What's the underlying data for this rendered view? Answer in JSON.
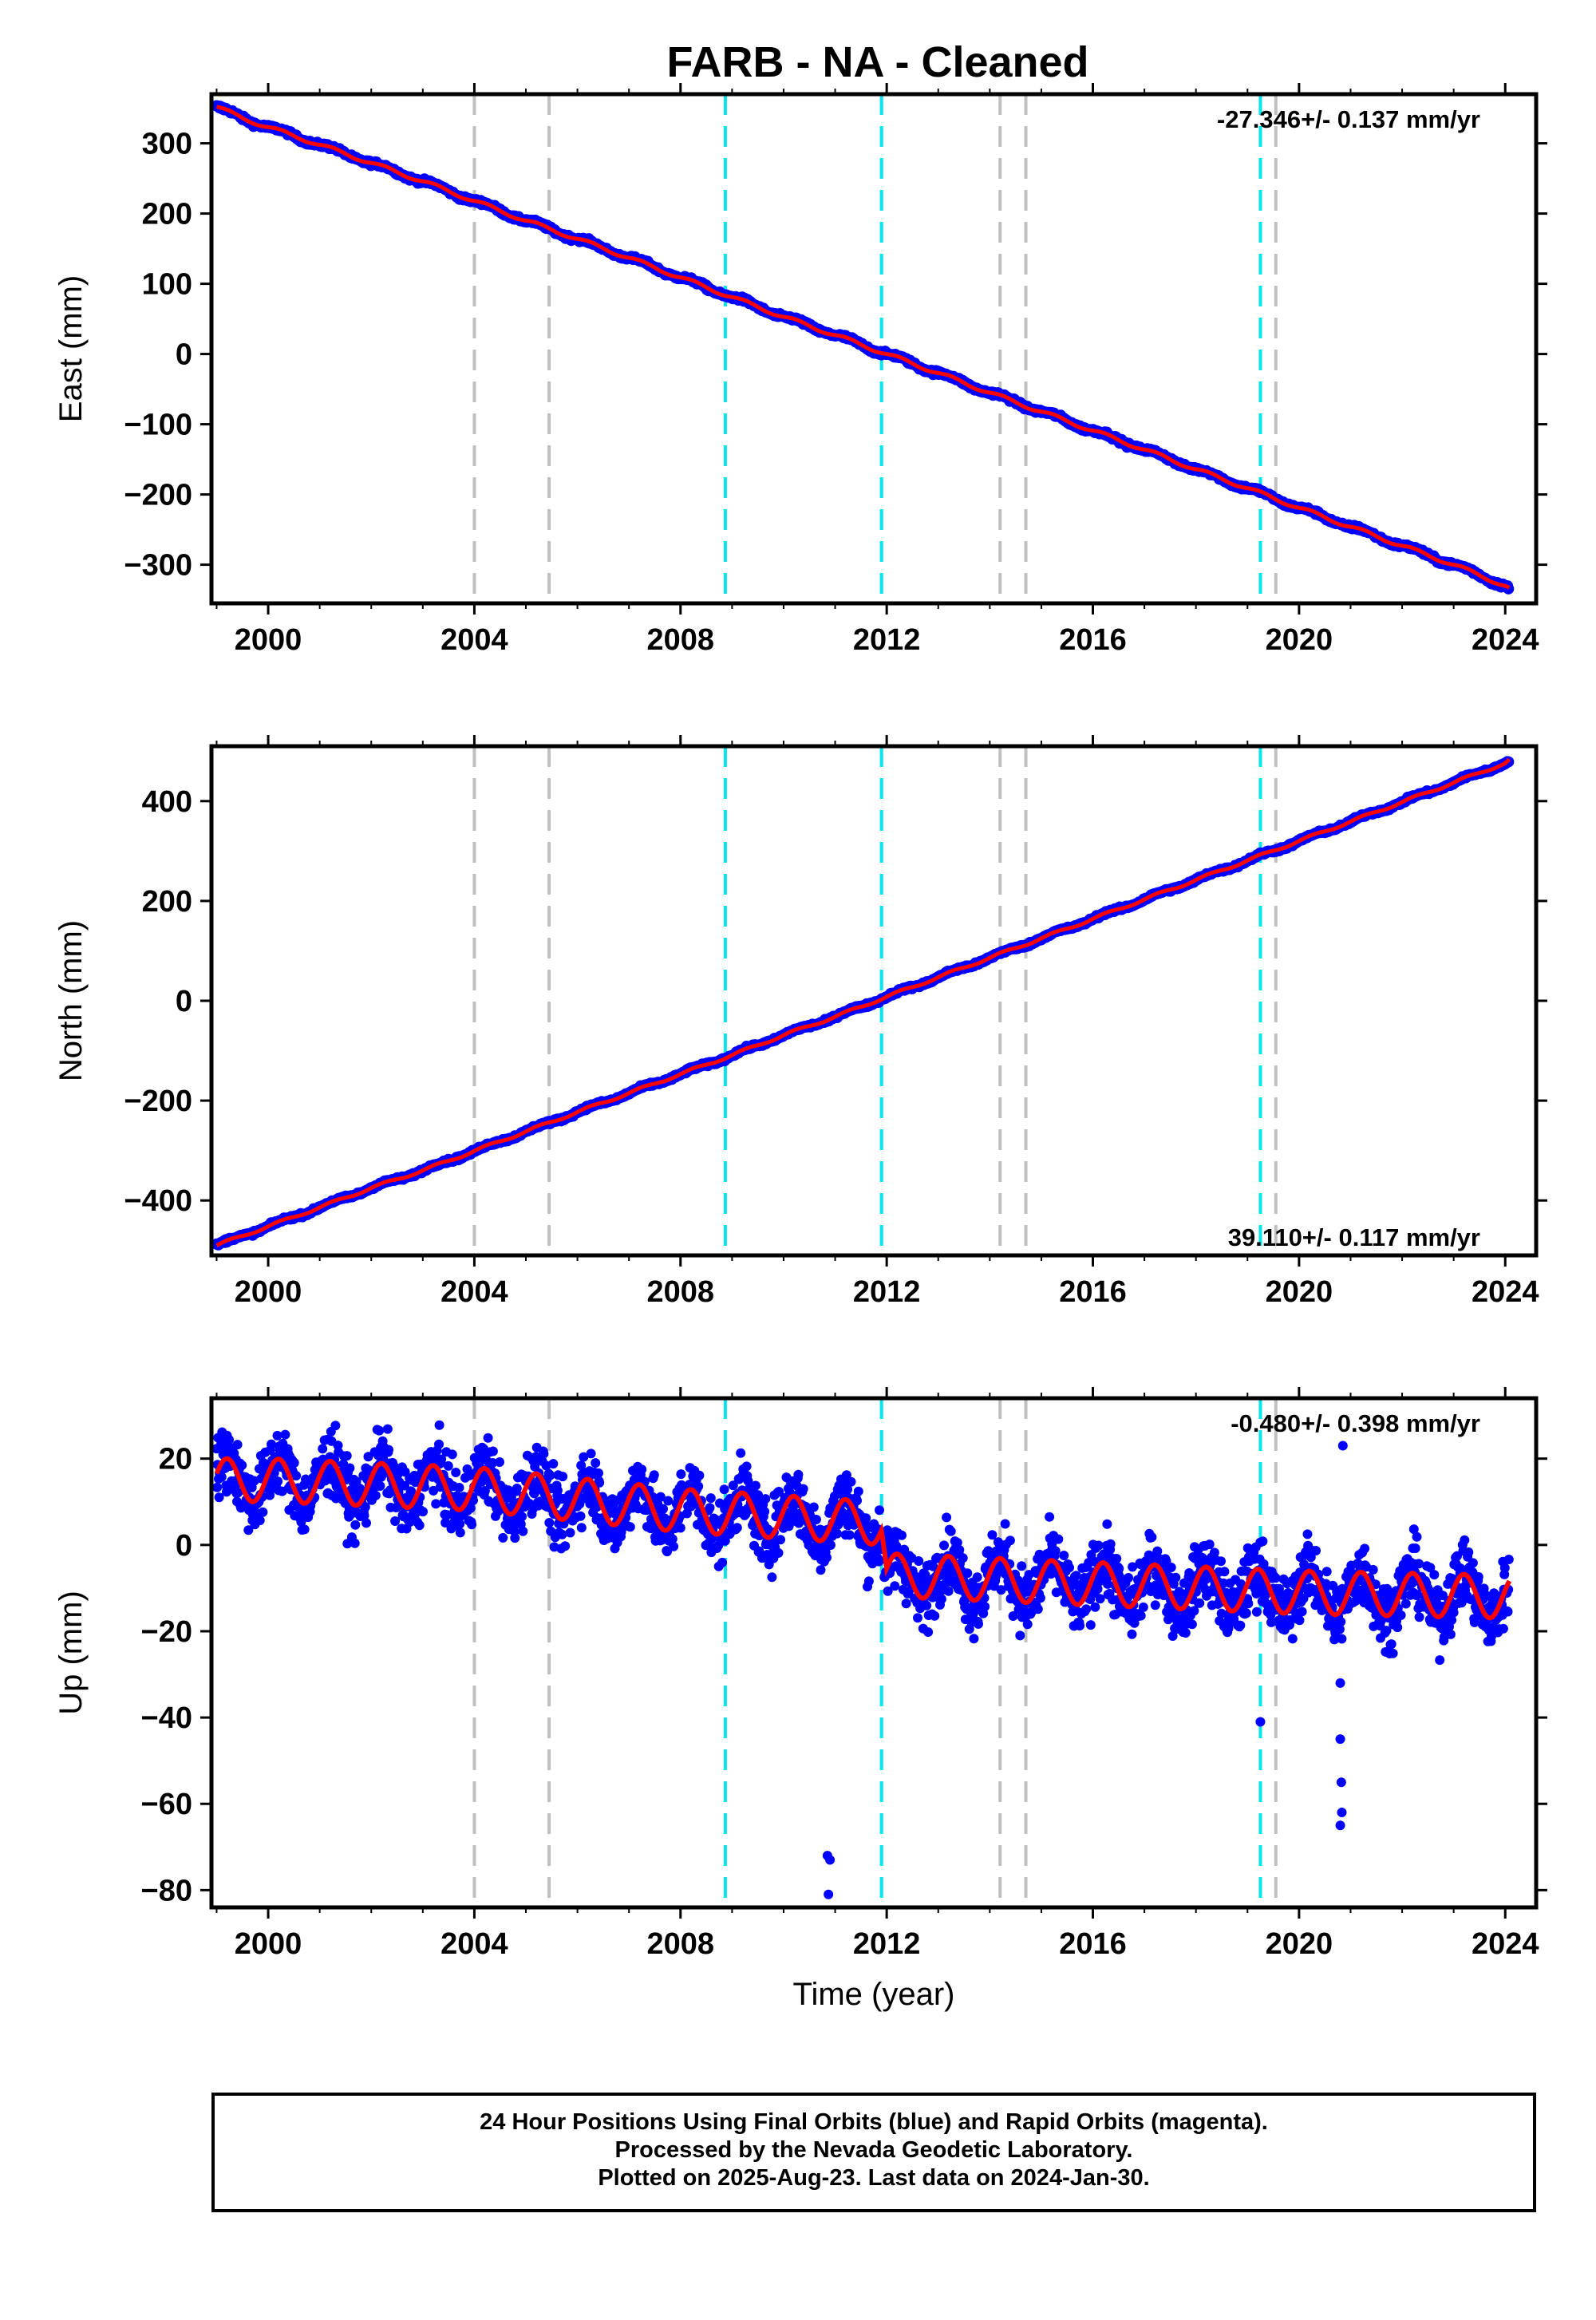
{
  "title": "FARB  - NA - Cleaned",
  "footer": {
    "line1": "24 Hour Positions Using Final Orbits (blue) and Rapid Orbits (magenta).",
    "line2": "Processed by the Nevada Geodetic Laboratory.",
    "line3": "Plotted on 2025-Aug-23. Last data on 2024-Jan-30."
  },
  "colors": {
    "data": "#0000ff",
    "fit": "#ff0000",
    "equipment_change": "#c0c0c0",
    "earthquake": "#00e5ee"
  },
  "chart_data": [
    {
      "type": "scatter",
      "panel": "east",
      "ylabel": "East (mm)",
      "xlabel": "",
      "xlim": [
        1998.9,
        2024.6
      ],
      "ylim": [
        -355,
        370
      ],
      "xticks": [
        2000,
        2004,
        2008,
        2012,
        2016,
        2020,
        2024
      ],
      "yticks": [
        -300,
        -200,
        -100,
        0,
        100,
        200,
        300
      ],
      "rate_label": "-27.346+/- 0.137 mm/yr",
      "rate_position": "top-right",
      "series": [
        {
          "x": [
            1999.0,
            1999.5,
            2000.0,
            2001.0,
            2002.0,
            2003.0,
            2004.0,
            2005.0,
            2006.0,
            2007.0,
            2008.0,
            2009.0,
            2010.0,
            2011.0,
            2012.0,
            2013.0,
            2014.0,
            2015.0,
            2016.0,
            2017.0,
            2018.0,
            2019.0,
            2020.0,
            2021.0,
            2022.0,
            2023.0,
            2024.0,
            2024.1
          ],
          "y": [
            352,
            336,
            323,
            298,
            272,
            246,
            218,
            190,
            164,
            137,
            109,
            81,
            53,
            27,
            0,
            -27,
            -55,
            -82,
            -109,
            -136,
            -164,
            -191,
            -219,
            -246,
            -273,
            -300,
            -330,
            -335
          ]
        }
      ],
      "grid": false
    },
    {
      "type": "scatter",
      "panel": "north",
      "ylabel": "North (mm)",
      "xlabel": "",
      "xlim": [
        1998.9,
        2024.6
      ],
      "ylim": [
        -510,
        510
      ],
      "xticks": [
        2000,
        2004,
        2008,
        2012,
        2016,
        2020,
        2024
      ],
      "yticks": [
        -400,
        -200,
        0,
        200,
        400
      ],
      "rate_label": "39.110+/- 0.117 mm/yr",
      "rate_position": "bottom-right",
      "series": [
        {
          "x": [
            1999.0,
            2000.0,
            2001.0,
            2002.0,
            2003.0,
            2004.0,
            2005.0,
            2006.0,
            2007.0,
            2008.0,
            2009.0,
            2010.0,
            2011.0,
            2012.0,
            2013.0,
            2014.0,
            2015.0,
            2016.0,
            2017.0,
            2018.0,
            2019.0,
            2020.0,
            2021.0,
            2022.0,
            2023.0,
            2024.0,
            2024.1
          ],
          "y": [
            -490,
            -452,
            -414,
            -375,
            -340,
            -301,
            -262,
            -223,
            -185,
            -147,
            -109,
            -69,
            -32,
            8,
            47,
            86,
            125,
            164,
            203,
            242,
            281,
            320,
            359,
            398,
            437,
            476,
            484
          ]
        }
      ],
      "grid": false
    },
    {
      "type": "scatter",
      "panel": "up",
      "ylabel": "Up (mm)",
      "xlabel": "Time (year)",
      "xlim": [
        1998.9,
        2024.6
      ],
      "ylim": [
        -84,
        34
      ],
      "xticks": [
        2000,
        2004,
        2008,
        2012,
        2016,
        2020,
        2024
      ],
      "yticks": [
        -80,
        -60,
        -40,
        -20,
        0,
        20
      ],
      "rate_label": "-0.480+/- 0.398 mm/yr",
      "rate_position": "top-right",
      "outliers": [
        {
          "x": 2010.85,
          "y": -72
        },
        {
          "x": 2010.9,
          "y": -73
        },
        {
          "x": 2010.87,
          "y": -81
        },
        {
          "x": 2019.25,
          "y": -41
        },
        {
          "x": 2020.8,
          "y": -32
        },
        {
          "x": 2020.8,
          "y": -45
        },
        {
          "x": 2020.82,
          "y": -55
        },
        {
          "x": 2020.83,
          "y": -62
        },
        {
          "x": 2020.8,
          "y": -65
        },
        {
          "x": 2020.85,
          "y": 23
        }
      ],
      "series": [
        {
          "name": "",
          "x": [
            1999.0,
            2000.0,
            2004.0,
            2008.0,
            2011.9,
            2012.0,
            2016.0,
            2020.0,
            2024.0
          ],
          "y": [
            15,
            15,
            13,
            8,
            5,
            -7,
            -9,
            -11,
            -12
          ]
        }
      ],
      "grid": false
    }
  ],
  "event_lines": {
    "equipment_change": [
      2004.0,
      2005.45,
      2014.2,
      2014.7,
      2019.55
    ],
    "earthquake": [
      2008.87,
      2011.9,
      2019.25
    ]
  }
}
